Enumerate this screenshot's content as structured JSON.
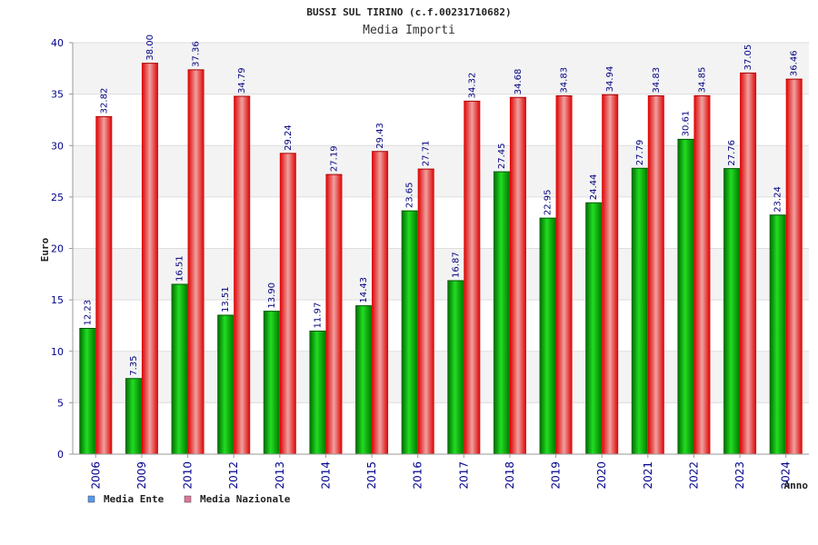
{
  "chart_data": {
    "type": "bar",
    "title": "BUSSI SUL TIRINO (c.f.00231710682)",
    "subtitle": "Media Importi",
    "xlabel": "Anno",
    "ylabel": "Euro",
    "ylim": [
      0,
      40
    ],
    "yticks": [
      0,
      5,
      10,
      15,
      20,
      25,
      30,
      35,
      40
    ],
    "grid": true,
    "legend_position": "bottom-left",
    "categories": [
      "2006",
      "2009",
      "2010",
      "2012",
      "2013",
      "2014",
      "2015",
      "2016",
      "2017",
      "2018",
      "2019",
      "2020",
      "2021",
      "2022",
      "2023",
      "2024"
    ],
    "series": [
      {
        "name": "Media Ente",
        "color": "#00aa00",
        "values": [
          12.23,
          7.35,
          16.51,
          13.51,
          13.9,
          11.97,
          14.43,
          23.65,
          16.87,
          27.45,
          22.95,
          24.44,
          27.79,
          30.61,
          27.76,
          23.24
        ],
        "labels": [
          "12.23",
          "7.35",
          "16.51",
          "13.51",
          "13.90",
          "11.97",
          "14.43",
          "23.65",
          "16.87",
          "27.45",
          "22.95",
          "24.44",
          "27.79",
          "30.61",
          "27.76",
          "23.24"
        ]
      },
      {
        "name": "Media Nazionale",
        "color": "#ee1111",
        "values": [
          32.82,
          38.0,
          37.36,
          34.79,
          29.24,
          27.19,
          29.43,
          27.71,
          34.32,
          34.68,
          34.83,
          34.94,
          34.83,
          34.85,
          37.05,
          36.46
        ],
        "labels": [
          "32.82",
          "38.00",
          "37.36",
          "34.79",
          "29.24",
          "27.19",
          "29.43",
          "27.71",
          "34.32",
          "34.68",
          "34.83",
          "34.94",
          "34.83",
          "34.85",
          "37.05",
          "36.46"
        ]
      }
    ],
    "legend_colors": [
      "#5599ee",
      "#dd7799"
    ]
  }
}
